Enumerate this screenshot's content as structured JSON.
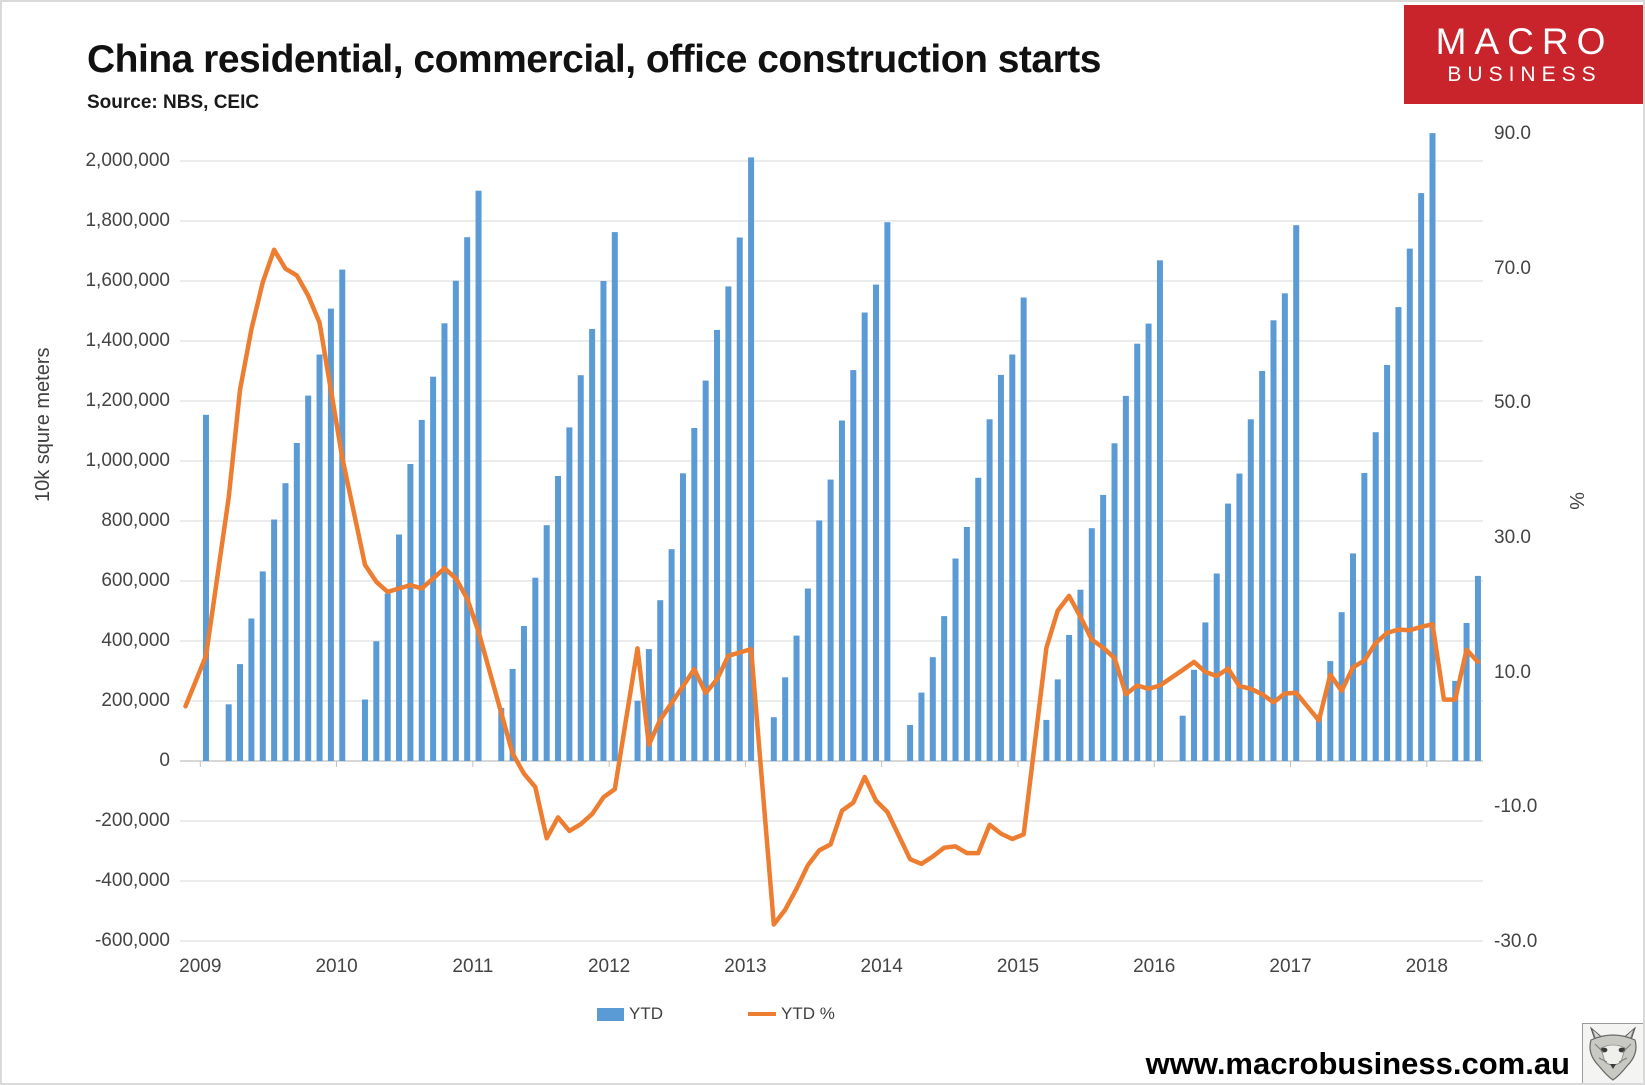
{
  "header": {
    "title": "China residential, commercial, office construction starts",
    "source": "Source: NBS, CEIC"
  },
  "logo": {
    "line1": "MACRO",
    "line2": "BUSINESS",
    "bg_color": "#c9242b",
    "text_color": "#ffffff"
  },
  "legend": [
    {
      "label": "YTD",
      "color": "#5B9BD5",
      "type": "bar"
    },
    {
      "label": "YTD %",
      "color": "#ED7D31",
      "type": "line"
    }
  ],
  "footer": {
    "url": "www.macrobusiness.com.au",
    "stamp": "fox-head-stamp"
  },
  "chart_data": {
    "type": "bar+line",
    "title": "China residential, commercial, office construction starts",
    "grid": "horizontal",
    "bar_color": "#5B9BD5",
    "line_color": "#ED7D31",
    "left_axis": {
      "title": "10k squre meters",
      "min": -600000,
      "max": 2000000,
      "step": 200000,
      "tick_labels": [
        "2,000,000",
        "1,800,000",
        "1,600,000",
        "1,400,000",
        "1,200,000",
        "1,000,000",
        "800,000",
        "600,000",
        "400,000",
        "200,000",
        "0",
        "-200,000",
        "-400,000",
        "-600,000"
      ]
    },
    "right_axis": {
      "title": "%",
      "min": -30,
      "max": 90,
      "step": 20,
      "tick_labels": [
        "90.0",
        "70.0",
        "50.0",
        "30.0",
        "10.0",
        "-10.0",
        "-30.0"
      ]
    },
    "x_tick_labels": [
      "2009",
      "2010",
      "2011",
      "2012",
      "2013",
      "2014",
      "2015",
      "2016",
      "2017",
      "2018"
    ],
    "lead_in_pct": 5,
    "segments": [
      {
        "year_label": "2009",
        "dec_value": 1154000,
        "dec_pct": 12.5,
        "month_values": [
          189000,
          323000,
          475000,
          632000,
          805000,
          926000,
          1060000,
          1218000,
          1355000,
          1508000
        ],
        "month_pct": [
          36,
          52,
          61,
          68,
          72.8,
          70,
          69,
          66,
          62,
          52
        ]
      },
      {
        "year_label": "2010",
        "dec_value": 1638000,
        "dec_pct": 41.9,
        "month_values": [
          205000,
          399000,
          558000,
          755000,
          990000,
          1137000,
          1281000,
          1459000,
          1601000,
          1746000
        ],
        "month_pct": [
          26,
          23.5,
          22,
          22.5,
          23,
          22.5,
          24,
          25.5,
          24,
          21
        ]
      },
      {
        "year_label": "2011",
        "dec_value": 1901000,
        "dec_pct": 16.1,
        "month_values": [
          177000,
          307000,
          450000,
          611000,
          786000,
          950000,
          1112000,
          1286000,
          1440000,
          1600000
        ],
        "month_pct": [
          4,
          -2,
          -5,
          -7,
          -14.6,
          -11.5,
          -13.5,
          -12.5,
          -11,
          -8.5
        ]
      },
      {
        "year_label": "2012",
        "dec_value": 1763000,
        "dec_pct": -7.3,
        "month_values": [
          201000,
          373000,
          536000,
          706000,
          959000,
          1110000,
          1268000,
          1437000,
          1582000,
          1745000
        ],
        "month_pct": [
          13.6,
          -0.7,
          3,
          5.5,
          8,
          10.5,
          7,
          9,
          12.5,
          13
        ]
      },
      {
        "year_label": "2013",
        "dec_value": 2012000,
        "dec_pct": 13.5,
        "month_values": [
          146000,
          279000,
          418000,
          575000,
          802000,
          938000,
          1135000,
          1303000,
          1495000,
          1588000
        ],
        "month_pct": [
          -27.4,
          -25.2,
          -22.1,
          -18.6,
          -16.4,
          -15.5,
          -10.5,
          -9.3,
          -5.5,
          -9.0
        ]
      },
      {
        "year_label": "2014",
        "dec_value": 1796000,
        "dec_pct": -10.7,
        "month_values": [
          120000,
          228000,
          346000,
          483000,
          675000,
          780000,
          944000,
          1139000,
          1287000,
          1355000
        ],
        "month_pct": [
          -17.7,
          -18.4,
          -17.3,
          -16.0,
          -15.8,
          -16.8,
          -16.8,
          -12.6,
          -13.9,
          -14.7
        ]
      },
      {
        "year_label": "2015",
        "dec_value": 1545000,
        "dec_pct": -14.0,
        "month_values": [
          137000,
          272000,
          420000,
          571000,
          776000,
          887000,
          1059000,
          1217000,
          1391000,
          1458000
        ],
        "month_pct": [
          13.7,
          19.2,
          21.4,
          18.3,
          14.9,
          13.7,
          12.2,
          6.8,
          8.1,
          7.6
        ]
      },
      {
        "year_label": "2016",
        "dec_value": 1669000,
        "dec_pct": 8.1,
        "month_values": [
          151000,
          304000,
          462000,
          625000,
          858000,
          958000,
          1139000,
          1300000,
          1469000,
          1559000
        ],
        "month_pct": [
          10.4,
          11.6,
          10.1,
          9.5,
          10.6,
          8.0,
          7.6,
          6.8,
          5.6,
          6.9
        ]
      },
      {
        "year_label": "2017",
        "dec_value": 1786000,
        "dec_pct": 7.0,
        "month_values": [
          155000,
          333000,
          496000,
          692000,
          960000,
          1096000,
          1320000,
          1513000,
          1708000,
          1893000
        ],
        "month_pct": [
          2.9,
          9.7,
          7.3,
          10.8,
          11.8,
          14.4,
          15.9,
          16.4,
          16.3,
          16.8
        ]
      },
      {
        "year_label": "2018",
        "dec_value": 2093000,
        "dec_pct": 17.2,
        "jan_pct": 6.0,
        "month_values": [
          267000,
          460000,
          617000
        ],
        "month_pct": [
          6.0,
          13.4,
          11.6
        ]
      }
    ]
  }
}
